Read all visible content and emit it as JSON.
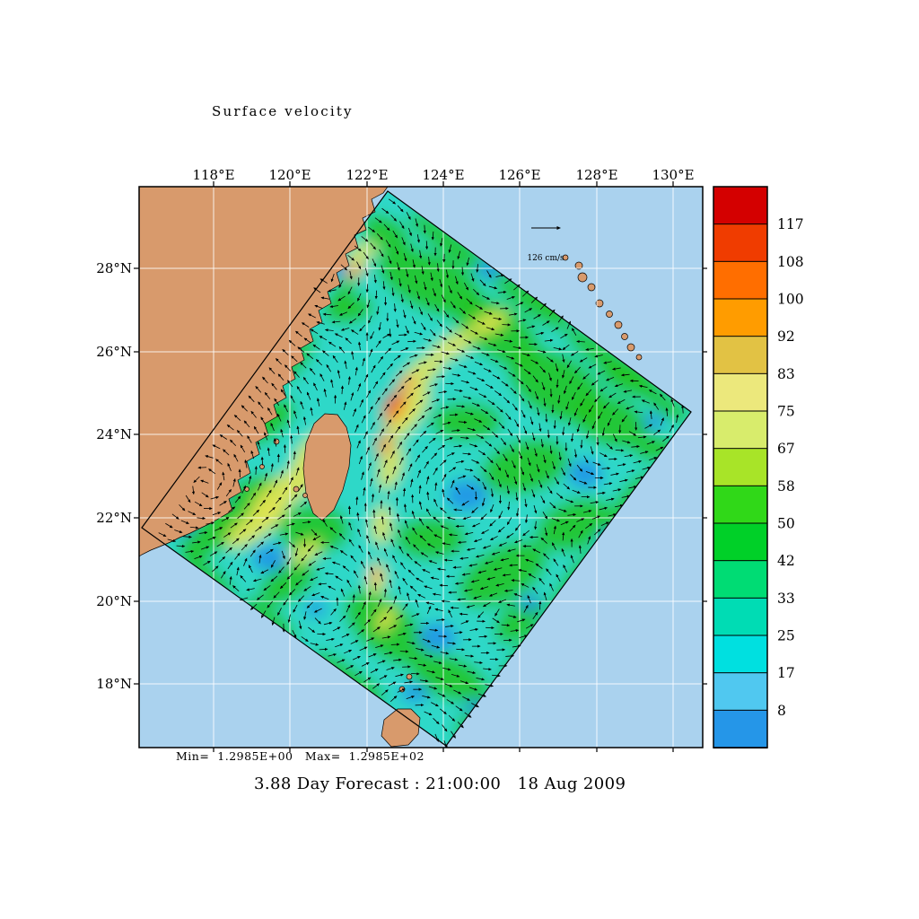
{
  "title": "Surface velocity",
  "footer": {
    "stats": "Min=  1.2985E+00   Max=  1.2985E+02",
    "caption": "3.88 Day Forecast : 21:00:00   18 Aug 2009"
  },
  "reference_vector": {
    "label": "126 cm/s"
  },
  "axes": {
    "x_ticks": [
      "118°E",
      "120°E",
      "122°E",
      "124°E",
      "126°E",
      "128°E",
      "130°E"
    ],
    "y_ticks": [
      "28°N",
      "26°N",
      "24°N",
      "22°N",
      "20°N",
      "18°N"
    ]
  },
  "colorbar": {
    "labels": [
      "117",
      "108",
      "100",
      "92",
      "83",
      "75",
      "67",
      "58",
      "50",
      "42",
      "33",
      "25",
      "17",
      "8"
    ],
    "colors_top_to_bottom": [
      "#d40000",
      "#f03c00",
      "#ff6e00",
      "#ff9c00",
      "#e2c244",
      "#ece87c",
      "#d8ec6c",
      "#a8e428",
      "#30d818",
      "#00d028",
      "#00dc74",
      "#00dcb4",
      "#00e0e0",
      "#50c8f0",
      "#2596e8"
    ]
  },
  "palette": {
    "background": "#ffffff",
    "ocean": "#aad2ee",
    "land": "#d89a6c",
    "grid": "#ffffff",
    "frame": "#000000",
    "arrow": "#000000",
    "field_base": "#2ed8c8"
  },
  "chart_data": {
    "type": "heatmap",
    "title": "Surface velocity",
    "units": "cm/s",
    "x_ticks": [
      "118°E",
      "120°E",
      "122°E",
      "124°E",
      "126°E",
      "128°E",
      "130°E"
    ],
    "y_ticks": [
      "28°N",
      "26°N",
      "24°N",
      "22°N",
      "20°N",
      "18°N"
    ],
    "colorbar_levels": [
      8,
      17,
      25,
      33,
      42,
      50,
      58,
      67,
      75,
      83,
      92,
      100,
      108,
      117
    ],
    "min_label": "Min=  1.2985E+00",
    "max_label": "Max=  1.2985E+02",
    "min": 1.2985,
    "max": 129.85,
    "reference_vector_cm_s": 126,
    "forecast_caption": "3.88 Day Forecast : 21:00:00   18 Aug 2009",
    "legend_position": "right",
    "grid": true,
    "overlay": "velocity vector arrows on rotated model domain"
  }
}
